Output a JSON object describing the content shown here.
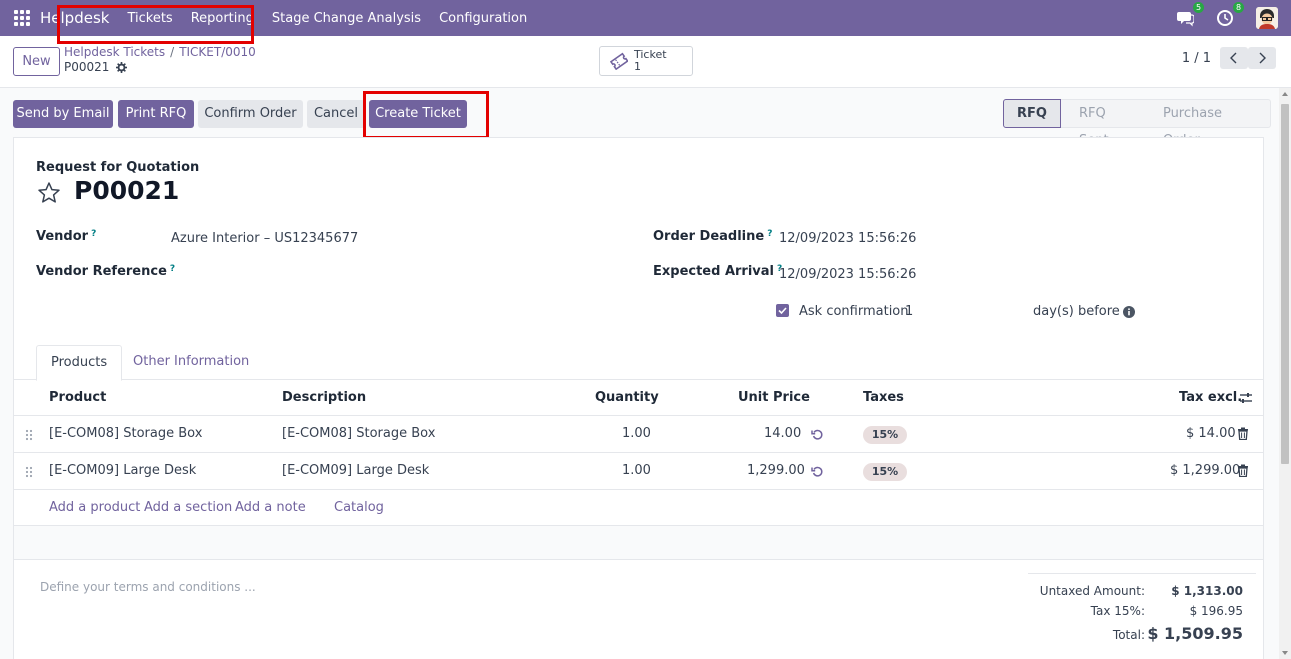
{
  "nav": {
    "brand": "Helpdesk",
    "menu": [
      "Tickets",
      "Reporting",
      "Stage Change Analysis",
      "Configuration"
    ],
    "chat_count": "5",
    "activity_count": "8"
  },
  "control": {
    "new_label": "New",
    "breadcrumb_parent": "Helpdesk Tickets",
    "breadcrumb_separator": "/",
    "breadcrumb_current": "TICKET/0010",
    "record_name": "P00021",
    "smart_button": {
      "label": "Ticket",
      "count": "1"
    },
    "pager": "1 / 1"
  },
  "actions": {
    "send_email": "Send by Email",
    "print_rfq": "Print RFQ",
    "confirm_order": "Confirm Order",
    "cancel": "Cancel",
    "create_ticket": "Create Ticket"
  },
  "stages": [
    "RFQ",
    "RFQ Sent",
    "Purchase Order"
  ],
  "form": {
    "doc_type": "Request for Quotation",
    "title": "P00021",
    "vendor_label": "Vendor",
    "vendor_value": "Azure Interior – US12345677",
    "vendor_ref_label": "Vendor Reference",
    "deadline_label": "Order Deadline",
    "deadline_value": "12/09/2023 15:56:26",
    "arrival_label": "Expected Arrival",
    "arrival_value": "12/09/2023 15:56:26",
    "ask_confirmation_label": "Ask confirmation",
    "ask_confirmation_days": "1",
    "days_before": "day(s) before",
    "help_mark": "?"
  },
  "tabs": [
    "Products",
    "Other Information"
  ],
  "table": {
    "headers": [
      "Product",
      "Description",
      "Quantity",
      "Unit Price",
      "Taxes",
      "Tax excl."
    ],
    "rows": [
      {
        "product": "[E-COM08] Storage Box",
        "description": "[E-COM08] Storage Box",
        "quantity": "1.00",
        "unit_price": "14.00",
        "tax": "15%",
        "subtotal": "$ 14.00"
      },
      {
        "product": "[E-COM09] Large Desk",
        "description": "[E-COM09] Large Desk",
        "quantity": "1.00",
        "unit_price": "1,299.00",
        "tax": "15%",
        "subtotal": "$ 1,299.00"
      }
    ],
    "add_links": [
      "Add a product",
      "Add a section",
      "Add a note",
      "Catalog"
    ]
  },
  "terms_placeholder": "Define your terms and conditions ...",
  "totals": {
    "untaxed_label": "Untaxed Amount:",
    "untaxed_value": "$ 1,313.00",
    "tax_label": "Tax 15%:",
    "tax_value": "$ 196.95",
    "total_label": "Total:",
    "total_value": "$ 1,509.95"
  },
  "colors": {
    "brand": "#71639e",
    "highlight": "#e30000",
    "badge": "#28a745"
  }
}
